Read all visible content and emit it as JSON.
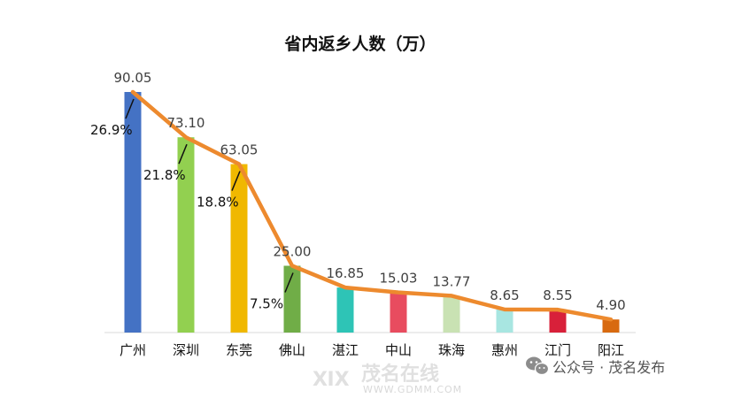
{
  "chart_data": {
    "type": "bar",
    "title": "省内返乡人数（万）",
    "categories": [
      "广州",
      "深圳",
      "东莞",
      "佛山",
      "湛江",
      "中山",
      "珠海",
      "惠州",
      "江门",
      "阳江"
    ],
    "values": [
      90.05,
      73.1,
      63.05,
      25.0,
      16.85,
      15.03,
      13.77,
      8.65,
      8.55,
      4.9
    ],
    "value_labels": [
      "90.05",
      "73.10",
      "63.05",
      "25.00",
      "16.85",
      "15.03",
      "13.77",
      "8.65",
      "8.55",
      "4.90"
    ],
    "percent_labels": [
      "26.9%",
      "21.8%",
      "18.8%",
      "7.5%"
    ],
    "bar_colors": [
      "#4472C4",
      "#92D050",
      "#F0B800",
      "#70AD47",
      "#2EC4B6",
      "#E84C5F",
      "#C9E2B3",
      "#A8E6E1",
      "#D8203A",
      "#D86A10"
    ],
    "line_color": "#ED8A2E",
    "ylim": [
      0,
      100
    ],
    "xlabel": "",
    "ylabel": "",
    "grid": false,
    "legend": "none"
  },
  "watermark": {
    "chinese": "茂名在线",
    "url": "WWW.GDMM.COM",
    "logo": "ⅪⅩ"
  },
  "source": {
    "icon": "wechat-icon",
    "text": "公众号 · 茂名发布"
  }
}
